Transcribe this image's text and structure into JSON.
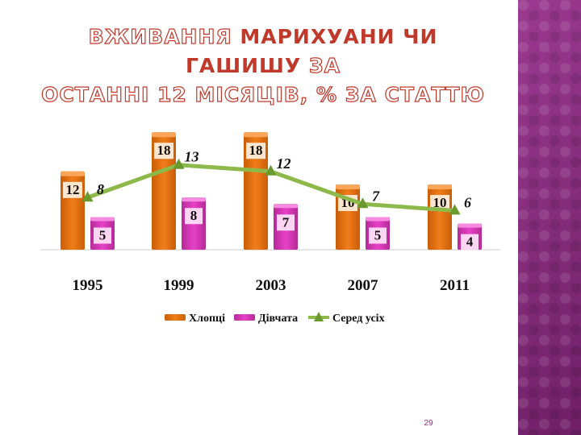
{
  "title": {
    "line1_outline_a": "ВЖИВАННЯ",
    "line1_solid": "МАРИХУАНИ ЧИ ГАШИШУ",
    "line1_outline_b": "ЗА",
    "line2": "ОСТАННІ 12 МІСЯЦІВ, % ЗА СТАТТЮ"
  },
  "page_number": "29",
  "colors": {
    "boys": "#f07d1a",
    "girls": "#e641c8",
    "all": "#8db84a",
    "title": "#c0392b",
    "side_panel": "#8a2d7f"
  },
  "chart_data": {
    "type": "bar",
    "categories": [
      "1995",
      "1999",
      "2003",
      "2007",
      "2011"
    ],
    "series": [
      {
        "name": "Хлопці",
        "kind": "bar",
        "values": [
          12,
          18,
          18,
          10,
          10
        ]
      },
      {
        "name": "Дівчата",
        "kind": "bar",
        "values": [
          5,
          8,
          7,
          5,
          4
        ]
      },
      {
        "name": "Серед усіх",
        "kind": "line",
        "values": [
          8,
          13,
          12,
          7,
          6
        ]
      }
    ],
    "ylim": [
      0,
      20
    ],
    "grid": false,
    "legend": "bottom"
  }
}
